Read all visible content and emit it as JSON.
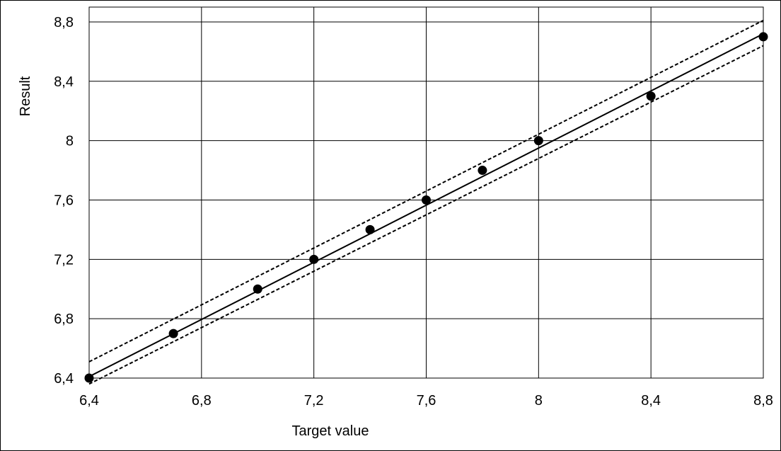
{
  "chart_data": {
    "type": "scatter",
    "title": "",
    "xlabel": "Target value",
    "ylabel": "Result",
    "xlim": [
      6.4,
      8.8
    ],
    "ylim": [
      6.4,
      8.9
    ],
    "x_ticks": [
      6.4,
      6.8,
      7.2,
      7.6,
      8.0,
      8.4,
      8.8
    ],
    "x_tick_labels": [
      "6,4",
      "6,8",
      "7,2",
      "7,6",
      "8",
      "8,4",
      "8,8"
    ],
    "y_ticks": [
      6.4,
      6.8,
      7.2,
      7.6,
      8.0,
      8.4,
      8.8
    ],
    "y_tick_labels": [
      "6,4",
      "6,8",
      "7,2",
      "7,6",
      "8",
      "8,4",
      "8,8"
    ],
    "grid": true,
    "legend": "none",
    "series": [
      {
        "kind": "points",
        "color": "#000000",
        "x": [
          6.4,
          6.7,
          7.0,
          7.2,
          7.4,
          7.6,
          7.8,
          8.0,
          8.4,
          8.8
        ],
        "y": [
          6.4,
          6.7,
          7.0,
          7.2,
          7.4,
          7.6,
          7.8,
          8.0,
          8.3,
          8.7
        ]
      },
      {
        "kind": "line",
        "style": "solid",
        "color": "#000000",
        "x": [
          6.4,
          8.8
        ],
        "y": [
          6.41,
          8.72
        ]
      },
      {
        "kind": "line",
        "style": "dashed",
        "color": "#000000",
        "x": [
          6.4,
          8.8
        ],
        "y": [
          6.51,
          8.81
        ]
      },
      {
        "kind": "line",
        "style": "dashed",
        "color": "#000000",
        "x": [
          6.4,
          8.8
        ],
        "y": [
          6.36,
          8.64
        ]
      }
    ]
  }
}
